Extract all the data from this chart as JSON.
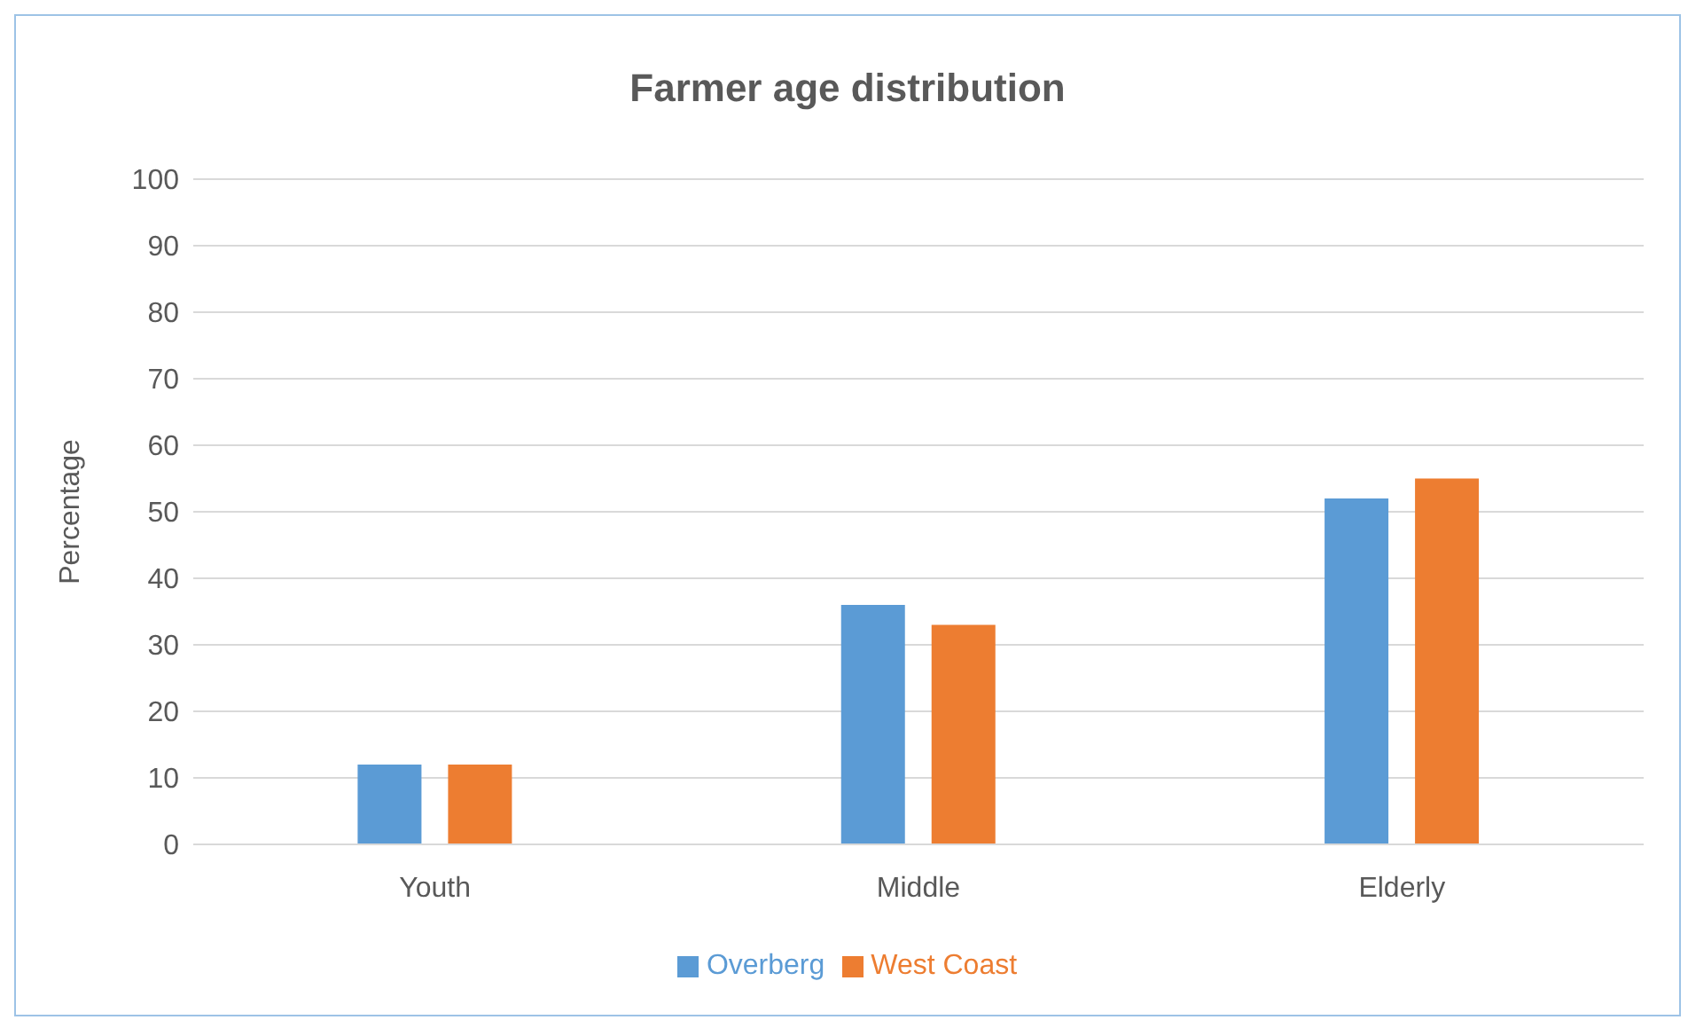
{
  "chart_data": {
    "type": "bar",
    "title": "Farmer age distribution",
    "ylabel": "Percentage",
    "categories": [
      "Youth",
      "Middle",
      "Elderly"
    ],
    "series": [
      {
        "name": "Overberg",
        "color": "#5b9bd5",
        "values": [
          12,
          36,
          52
        ]
      },
      {
        "name": "West Coast",
        "color": "#ed7d31",
        "values": [
          12,
          33,
          55
        ]
      }
    ],
    "ylim": [
      0,
      100
    ],
    "yticks": [
      0,
      10,
      20,
      30,
      40,
      50,
      60,
      70,
      80,
      90,
      100
    ],
    "grid": "y",
    "legend": "bottom"
  }
}
